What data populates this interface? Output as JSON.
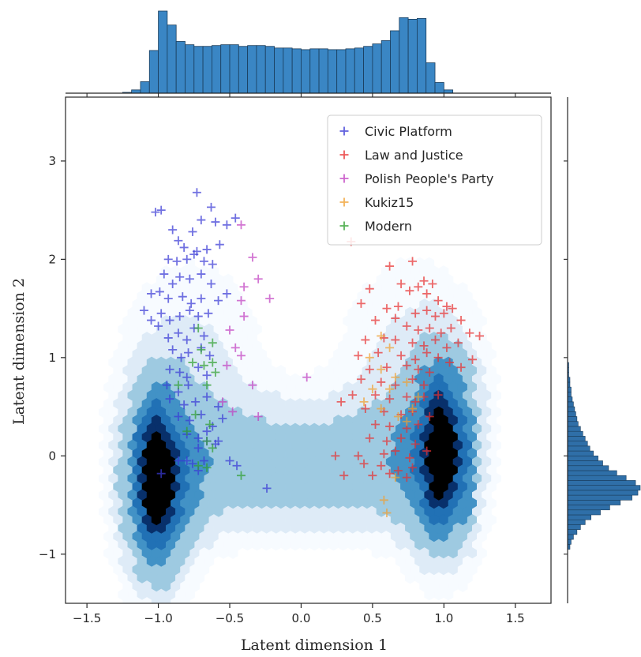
{
  "chart_data": {
    "type": "scatter",
    "xlabel": "Latent dimension 1",
    "ylabel": "Latent dimension 2",
    "xlim": [
      -1.65,
      1.75
    ],
    "ylim": [
      -1.5,
      3.65
    ],
    "x_ticks": [
      -1.5,
      -1.0,
      -0.5,
      0.0,
      0.5,
      1.0,
      1.5
    ],
    "x_tick_labels": [
      "−1.5",
      "−1.0",
      "−0.5",
      "0.0",
      "0.5",
      "1.0",
      "1.5"
    ],
    "y_ticks": [
      -1,
      0,
      1,
      2,
      3
    ],
    "y_tick_labels": [
      "−1",
      "0",
      "1",
      "2",
      "3"
    ],
    "grid": false,
    "legend_position": "top-right",
    "background_density": {
      "description_type": "hexbin",
      "colormap": [
        "#f7fbff",
        "#deebf7",
        "#9ecae1",
        "#4292c6",
        "#2171b5",
        "#08306b",
        "#000000"
      ],
      "clusters": [
        {
          "x": -1.0,
          "y": -0.25,
          "weight": 1.0
        },
        {
          "x": 0.98,
          "y": 0.05,
          "weight": 0.95
        }
      ]
    },
    "marginal_x": {
      "bin_start": -1.25,
      "bin_width": 0.0625,
      "counts": [
        1,
        4,
        14,
        52,
        100,
        83,
        63,
        59,
        57,
        57,
        58,
        59,
        59,
        57,
        58,
        58,
        57,
        55,
        55,
        54,
        53,
        54,
        54,
        53,
        53,
        54,
        55,
        57,
        60,
        64,
        76,
        92,
        90,
        91,
        37,
        13,
        4
      ],
      "color": "#3a86c4"
    },
    "marginal_y": {
      "description": "horizontal histogram of latent dimension 2",
      "bin_start": -0.95,
      "bin_width": 0.05,
      "counts": [
        2,
        3,
        5,
        8,
        11,
        15,
        20,
        28,
        36,
        45,
        55,
        60,
        62,
        58,
        50,
        42,
        35,
        30,
        26,
        22,
        19,
        17,
        15,
        13,
        11,
        9,
        8,
        7,
        6,
        5,
        4,
        3,
        3,
        2,
        2,
        1,
        1,
        1
      ],
      "color": "#2f6fa8"
    },
    "series": [
      {
        "name": "Civic Platform",
        "color": "#3a3ad6",
        "marker": "+",
        "points": [
          [
            -1.02,
            2.48
          ],
          [
            -0.98,
            2.5
          ],
          [
            -0.73,
            2.68
          ],
          [
            -0.63,
            2.53
          ],
          [
            -0.9,
            2.3
          ],
          [
            -0.86,
            2.19
          ],
          [
            -0.76,
            2.28
          ],
          [
            -0.7,
            2.4
          ],
          [
            -0.6,
            2.38
          ],
          [
            -0.52,
            2.35
          ],
          [
            -0.46,
            2.42
          ],
          [
            -0.82,
            2.12
          ],
          [
            -0.73,
            2.08
          ],
          [
            -0.66,
            2.1
          ],
          [
            -0.57,
            2.15
          ],
          [
            -0.93,
            2.0
          ],
          [
            -0.87,
            1.98
          ],
          [
            -0.8,
            2.0
          ],
          [
            -0.75,
            2.05
          ],
          [
            -0.68,
            1.98
          ],
          [
            -0.62,
            1.95
          ],
          [
            -0.96,
            1.85
          ],
          [
            -0.9,
            1.75
          ],
          [
            -0.85,
            1.82
          ],
          [
            -0.78,
            1.8
          ],
          [
            -0.7,
            1.85
          ],
          [
            -0.63,
            1.75
          ],
          [
            -1.05,
            1.65
          ],
          [
            -0.99,
            1.67
          ],
          [
            -0.93,
            1.6
          ],
          [
            -0.83,
            1.62
          ],
          [
            -0.77,
            1.55
          ],
          [
            -0.7,
            1.6
          ],
          [
            -0.58,
            1.58
          ],
          [
            -0.52,
            1.65
          ],
          [
            -1.1,
            1.48
          ],
          [
            -1.05,
            1.38
          ],
          [
            -0.98,
            1.45
          ],
          [
            -0.92,
            1.38
          ],
          [
            -0.85,
            1.42
          ],
          [
            -0.78,
            1.48
          ],
          [
            -0.72,
            1.42
          ],
          [
            -0.65,
            1.45
          ],
          [
            -1.0,
            1.32
          ],
          [
            -0.93,
            1.2
          ],
          [
            -0.86,
            1.25
          ],
          [
            -0.8,
            1.18
          ],
          [
            -0.75,
            1.3
          ],
          [
            -0.68,
            1.22
          ],
          [
            -0.9,
            1.08
          ],
          [
            -0.84,
            1.0
          ],
          [
            -0.79,
            1.05
          ],
          [
            -0.7,
            1.1
          ],
          [
            -0.64,
            1.02
          ],
          [
            -0.92,
            0.88
          ],
          [
            -0.85,
            0.85
          ],
          [
            -0.8,
            0.8
          ],
          [
            -0.72,
            0.9
          ],
          [
            -0.66,
            0.82
          ],
          [
            -0.94,
            0.72
          ],
          [
            -0.86,
            0.65
          ],
          [
            -0.79,
            0.72
          ],
          [
            -0.92,
            0.58
          ],
          [
            -0.82,
            0.52
          ],
          [
            -0.74,
            0.55
          ],
          [
            -0.66,
            0.6
          ],
          [
            -0.58,
            0.5
          ],
          [
            -0.86,
            0.4
          ],
          [
            -0.78,
            0.36
          ],
          [
            -0.7,
            0.42
          ],
          [
            -0.62,
            0.3
          ],
          [
            -0.55,
            0.38
          ],
          [
            -0.8,
            0.22
          ],
          [
            -0.72,
            0.18
          ],
          [
            -0.66,
            0.25
          ],
          [
            -0.6,
            0.12
          ],
          [
            -0.72,
            0.08
          ],
          [
            -0.66,
            0.15
          ],
          [
            -0.58,
            0.15
          ],
          [
            -0.86,
            -0.05
          ],
          [
            -0.8,
            -0.05
          ],
          [
            -0.76,
            -0.08
          ],
          [
            -0.68,
            -0.05
          ],
          [
            -0.72,
            -0.15
          ],
          [
            -0.98,
            -0.18
          ],
          [
            -0.24,
            -0.33
          ],
          [
            -0.5,
            -0.05
          ],
          [
            -0.45,
            -0.1
          ]
        ]
      },
      {
        "name": "Law and Justice",
        "color": "#e83030",
        "marker": "+",
        "points": [
          [
            0.35,
            2.18
          ],
          [
            0.62,
            1.93
          ],
          [
            0.78,
            1.98
          ],
          [
            0.86,
            1.78
          ],
          [
            0.92,
            1.75
          ],
          [
            0.48,
            1.7
          ],
          [
            0.7,
            1.75
          ],
          [
            0.76,
            1.68
          ],
          [
            0.82,
            1.72
          ],
          [
            0.88,
            1.65
          ],
          [
            0.96,
            1.58
          ],
          [
            1.02,
            1.52
          ],
          [
            0.42,
            1.55
          ],
          [
            0.6,
            1.5
          ],
          [
            0.68,
            1.52
          ],
          [
            0.8,
            1.45
          ],
          [
            0.88,
            1.48
          ],
          [
            0.94,
            1.42
          ],
          [
            1.0,
            1.45
          ],
          [
            1.06,
            1.5
          ],
          [
            1.12,
            1.38
          ],
          [
            0.52,
            1.38
          ],
          [
            0.66,
            1.4
          ],
          [
            0.74,
            1.32
          ],
          [
            0.82,
            1.28
          ],
          [
            0.9,
            1.3
          ],
          [
            0.98,
            1.25
          ],
          [
            1.05,
            1.3
          ],
          [
            1.18,
            1.25
          ],
          [
            1.25,
            1.22
          ],
          [
            0.45,
            1.18
          ],
          [
            0.58,
            1.2
          ],
          [
            0.66,
            1.18
          ],
          [
            0.78,
            1.15
          ],
          [
            0.86,
            1.12
          ],
          [
            0.94,
            1.18
          ],
          [
            1.02,
            1.1
          ],
          [
            1.1,
            1.15
          ],
          [
            0.4,
            1.02
          ],
          [
            0.54,
            1.05
          ],
          [
            0.7,
            1.02
          ],
          [
            0.8,
            0.98
          ],
          [
            0.88,
            1.05
          ],
          [
            0.96,
            1.0
          ],
          [
            1.04,
            0.95
          ],
          [
            1.2,
            0.98
          ],
          [
            0.48,
            0.88
          ],
          [
            0.6,
            0.9
          ],
          [
            0.74,
            0.92
          ],
          [
            0.82,
            0.88
          ],
          [
            0.9,
            0.85
          ],
          [
            1.12,
            0.9
          ],
          [
            0.42,
            0.78
          ],
          [
            0.56,
            0.75
          ],
          [
            0.66,
            0.72
          ],
          [
            0.78,
            0.78
          ],
          [
            0.86,
            0.72
          ],
          [
            0.52,
            0.62
          ],
          [
            0.62,
            0.58
          ],
          [
            0.74,
            0.6
          ],
          [
            0.8,
            0.55
          ],
          [
            0.86,
            0.6
          ],
          [
            0.45,
            0.48
          ],
          [
            0.58,
            0.45
          ],
          [
            0.7,
            0.42
          ],
          [
            0.78,
            0.45
          ],
          [
            0.9,
            0.4
          ],
          [
            0.52,
            0.32
          ],
          [
            0.62,
            0.3
          ],
          [
            0.74,
            0.28
          ],
          [
            0.82,
            0.32
          ],
          [
            0.48,
            0.18
          ],
          [
            0.6,
            0.15
          ],
          [
            0.7,
            0.18
          ],
          [
            0.8,
            0.12
          ],
          [
            0.58,
            0.02
          ],
          [
            0.66,
            0.05
          ],
          [
            0.76,
            -0.02
          ],
          [
            0.88,
            0.05
          ],
          [
            0.44,
            -0.08
          ],
          [
            0.56,
            -0.1
          ],
          [
            0.68,
            -0.15
          ],
          [
            0.78,
            -0.12
          ],
          [
            0.5,
            -0.2
          ],
          [
            0.62,
            -0.18
          ],
          [
            0.74,
            -0.22
          ],
          [
            0.24,
            0.0
          ],
          [
            0.4,
            0.0
          ],
          [
            0.3,
            -0.2
          ],
          [
            0.28,
            0.55
          ],
          [
            0.36,
            0.62
          ],
          [
            0.96,
            0.62
          ]
        ]
      },
      {
        "name": "Polish People's Party",
        "color": "#c040c0",
        "marker": "+",
        "points": [
          [
            -0.42,
            2.35
          ],
          [
            -0.34,
            2.02
          ],
          [
            -0.3,
            1.8
          ],
          [
            -0.22,
            1.6
          ],
          [
            -0.4,
            1.72
          ],
          [
            -0.42,
            1.58
          ],
          [
            -0.4,
            1.42
          ],
          [
            -0.5,
            1.28
          ],
          [
            -0.46,
            1.1
          ],
          [
            -0.42,
            1.02
          ],
          [
            -0.52,
            0.92
          ],
          [
            -0.34,
            0.72
          ],
          [
            -0.55,
            0.55
          ],
          [
            0.04,
            0.8
          ],
          [
            -0.48,
            0.45
          ],
          [
            -0.3,
            0.4
          ]
        ]
      },
      {
        "name": "Kukiz15",
        "color": "#f0a030",
        "marker": "+",
        "points": [
          [
            0.56,
            1.22
          ],
          [
            0.62,
            1.1
          ],
          [
            0.48,
            1.0
          ],
          [
            0.56,
            0.88
          ],
          [
            0.66,
            0.8
          ],
          [
            0.74,
            0.75
          ],
          [
            0.5,
            0.68
          ],
          [
            0.62,
            0.68
          ],
          [
            0.82,
            0.6
          ],
          [
            0.56,
            0.48
          ],
          [
            0.78,
            0.48
          ],
          [
            0.68,
            0.4
          ],
          [
            0.74,
            0.35
          ],
          [
            0.66,
            -0.22
          ],
          [
            0.58,
            -0.45
          ],
          [
            0.6,
            -0.58
          ],
          [
            0.44,
            0.55
          ]
        ]
      },
      {
        "name": "Modern",
        "color": "#30a030",
        "marker": "+",
        "points": [
          [
            -0.72,
            1.3
          ],
          [
            -0.62,
            1.15
          ],
          [
            -0.7,
            1.08
          ],
          [
            -0.76,
            0.95
          ],
          [
            -0.68,
            0.92
          ],
          [
            -0.62,
            0.95
          ],
          [
            -0.6,
            0.85
          ],
          [
            -0.86,
            0.72
          ],
          [
            -0.66,
            0.72
          ],
          [
            -0.74,
            0.42
          ],
          [
            -0.64,
            0.32
          ],
          [
            -0.8,
            0.25
          ],
          [
            -0.66,
            0.15
          ],
          [
            -0.72,
            -0.1
          ],
          [
            -0.66,
            -0.12
          ],
          [
            -0.42,
            -0.2
          ],
          [
            -0.62,
            0.08
          ]
        ]
      }
    ]
  }
}
